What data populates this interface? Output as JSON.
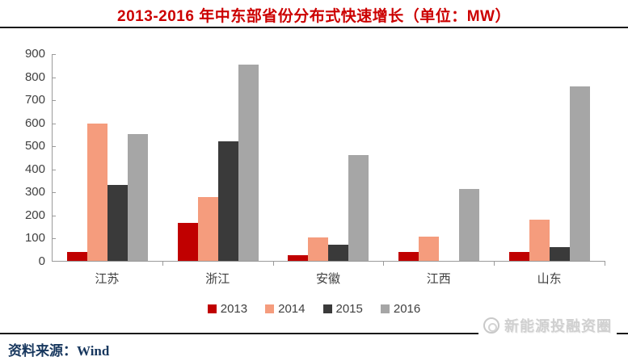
{
  "header": {
    "title": "2013-2016 年中东部省份分布式快速增长（单位：MW）"
  },
  "chart_data": {
    "type": "bar",
    "title": "2013-2016 年中东部省份分布式快速增长（单位：MW）",
    "unit": "MW",
    "categories": [
      "江苏",
      "浙江",
      "安徽",
      "江西",
      "山东"
    ],
    "series": [
      {
        "name": "2013",
        "color": "#c00000",
        "values": [
          40,
          165,
          25,
          40,
          40
        ]
      },
      {
        "name": "2014",
        "color": "#f59c7d",
        "values": [
          595,
          275,
          100,
          105,
          178
        ]
      },
      {
        "name": "2015",
        "color": "#3a3a3a",
        "values": [
          330,
          520,
          70,
          0,
          60
        ]
      },
      {
        "name": "2016",
        "color": "#a6a6a6",
        "values": [
          550,
          850,
          460,
          310,
          755
        ]
      }
    ],
    "ylim": [
      0,
      900
    ],
    "ytick_step": 100,
    "xlabel": "",
    "ylabel": "",
    "grid": false,
    "legend_position": "bottom"
  },
  "footer": {
    "source_label": "资料来源：Wind",
    "watermark": "新能源投融资圈"
  },
  "colors": {
    "title": "#cc0000",
    "rule": "#1a1a1a",
    "axis": "#9a9a9a",
    "tick_label": "#404040",
    "source_text": "#17375e",
    "watermark_text": "#d0d0d0"
  }
}
